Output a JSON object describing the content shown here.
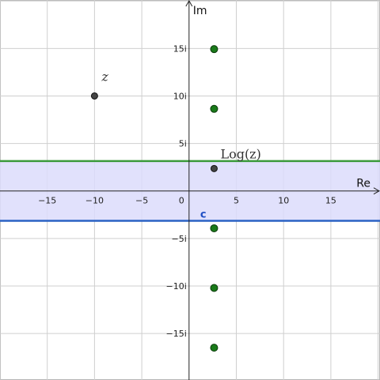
{
  "chart_data": {
    "type": "scatter",
    "title": "",
    "xlabel": "Re",
    "ylabel": "Im",
    "xlim": [
      -20,
      20.2
    ],
    "ylim": [
      -19.9,
      20.1
    ],
    "grid": true,
    "x_ticks": [
      {
        "value": -15,
        "label": "−15"
      },
      {
        "value": -10,
        "label": "−10"
      },
      {
        "value": -5,
        "label": "−5"
      },
      {
        "value": 0,
        "label": "0"
      },
      {
        "value": 5,
        "label": "5"
      },
      {
        "value": 10,
        "label": "10"
      },
      {
        "value": 15,
        "label": "15"
      }
    ],
    "y_ticks": [
      {
        "value": 15,
        "label": "15i"
      },
      {
        "value": 10,
        "label": "10i"
      },
      {
        "value": 5,
        "label": "5i"
      },
      {
        "value": -5,
        "label": "−5i"
      },
      {
        "value": -10,
        "label": "−10i"
      },
      {
        "value": -15,
        "label": "−15i"
      }
    ],
    "strip": {
      "y_low": -3.1416,
      "y_high": 3.1416,
      "fill_color": "#dcdcfb",
      "upper_line_color": "#3b9a3b",
      "lower_line_color": "#2b62c4",
      "label": "c",
      "label_color": "#1f4fc4"
    },
    "z_point": {
      "x": -10,
      "y": 10,
      "label": "z",
      "color": "#444444"
    },
    "log_point": {
      "x": 2.65,
      "y": 2.36,
      "label": "Log(z)",
      "color": "#444444"
    },
    "branch_points": {
      "color": "#1a7a1a",
      "x": 2.65,
      "y": [
        14.93,
        8.64,
        -3.93,
        -10.21,
        -16.5
      ]
    }
  }
}
